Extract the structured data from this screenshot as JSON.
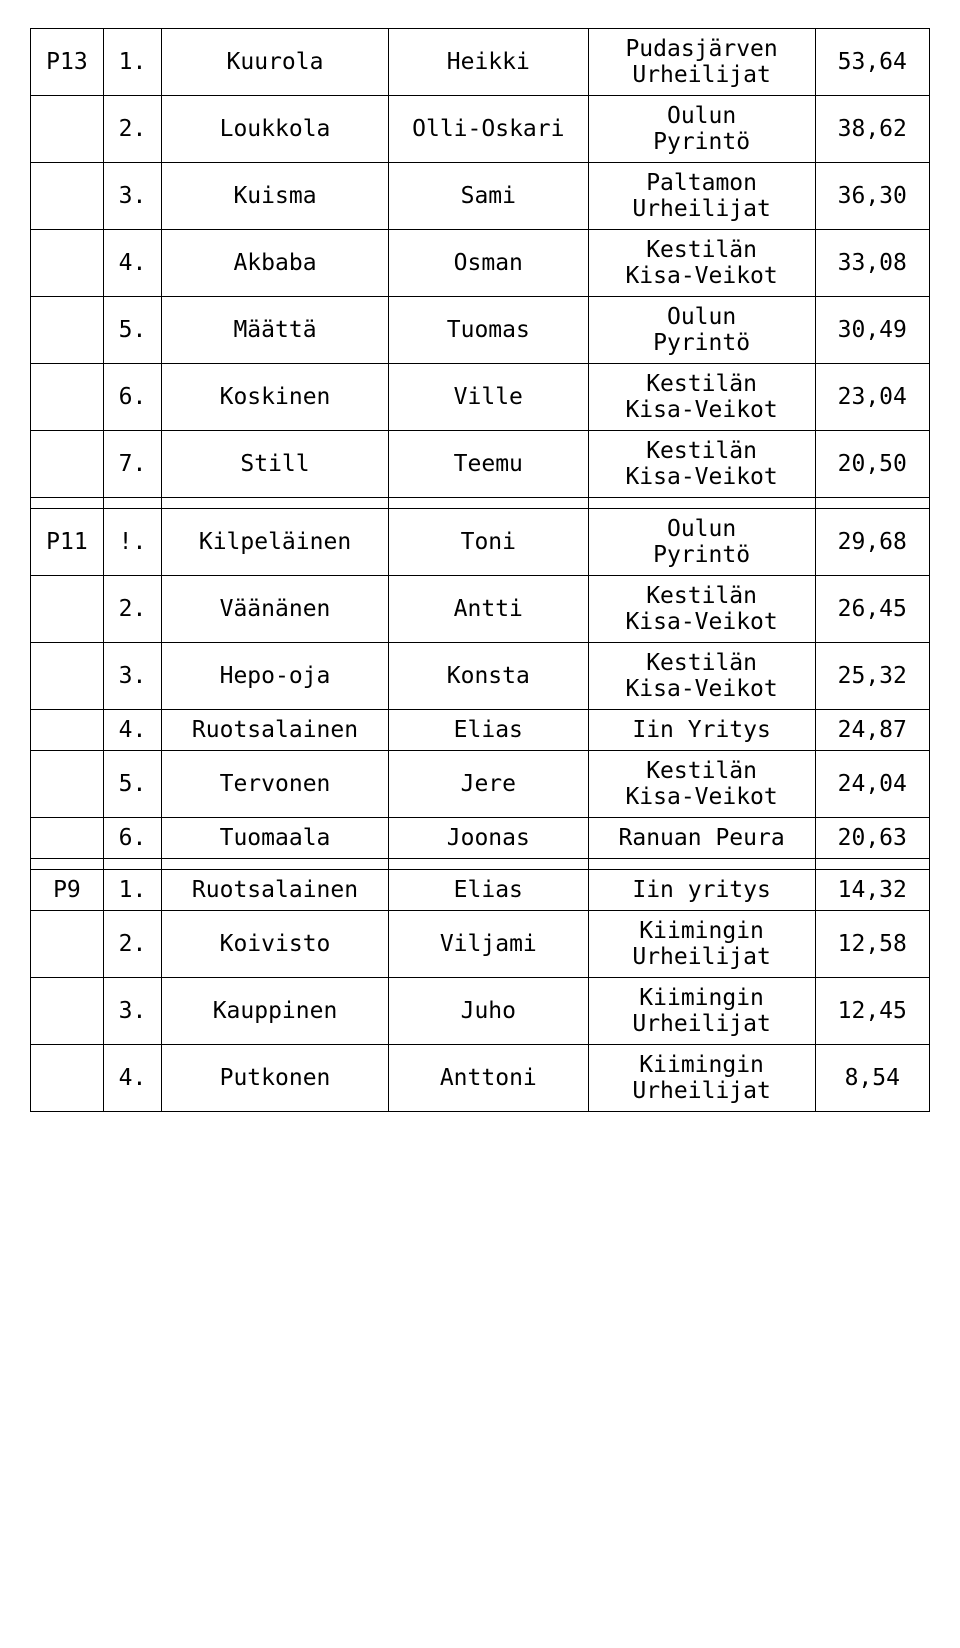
{
  "rows": [
    {
      "group": "P13",
      "rank": "1.",
      "lastname": "Kuurola",
      "firstname": "Heikki",
      "club": "Pudasjärven\nUrheilijat",
      "result": "53,64"
    },
    {
      "group": "",
      "rank": "2.",
      "lastname": "Loukkola",
      "firstname": "Olli-Oskari",
      "club": "Oulun\nPyrintö",
      "result": "38,62"
    },
    {
      "group": "",
      "rank": "3.",
      "lastname": "Kuisma",
      "firstname": "Sami",
      "club": "Paltamon\nUrheilijat",
      "result": "36,30"
    },
    {
      "group": "",
      "rank": "4.",
      "lastname": "Akbaba",
      "firstname": "Osman",
      "club": "Kestilän\nKisa-Veikot",
      "result": "33,08"
    },
    {
      "group": "",
      "rank": "5.",
      "lastname": "Määttä",
      "firstname": "Tuomas",
      "club": "Oulun\nPyrintö",
      "result": "30,49"
    },
    {
      "group": "",
      "rank": "6.",
      "lastname": "Koskinen",
      "firstname": "Ville",
      "club": "Kestilän\nKisa-Veikot",
      "result": "23,04"
    },
    {
      "group": "",
      "rank": "7.",
      "lastname": "Still",
      "firstname": "Teemu",
      "club": "Kestilän\nKisa-Veikot",
      "result": "20,50"
    },
    {
      "spacer": true
    },
    {
      "group": "P11",
      "rank": "!.",
      "lastname": "Kilpeläinen",
      "firstname": "Toni",
      "club": "Oulun\nPyrintö",
      "result": "29,68"
    },
    {
      "group": "",
      "rank": "2.",
      "lastname": "Väänänen",
      "firstname": "Antti",
      "club": "Kestilän\nKisa-Veikot",
      "result": "26,45"
    },
    {
      "group": "",
      "rank": "3.",
      "lastname": "Hepo-oja",
      "firstname": "Konsta",
      "club": "Kestilän\nKisa-Veikot",
      "result": "25,32"
    },
    {
      "group": "",
      "rank": "4.",
      "lastname": "Ruotsalainen",
      "firstname": "Elias",
      "club": "Iin Yritys",
      "result": "24,87"
    },
    {
      "group": "",
      "rank": "5.",
      "lastname": "Tervonen",
      "firstname": "Jere",
      "club": "Kestilän\nKisa-Veikot",
      "result": "24,04"
    },
    {
      "group": "",
      "rank": "6.",
      "lastname": "Tuomaala",
      "firstname": "Joonas",
      "club": "Ranuan Peura",
      "result": "20,63"
    },
    {
      "spacer": true
    },
    {
      "group": "P9",
      "rank": "1.",
      "lastname": "Ruotsalainen",
      "firstname": "Elias",
      "club": "Iin yritys",
      "result": "14,32"
    },
    {
      "group": "",
      "rank": "2.",
      "lastname": "Koivisto",
      "firstname": "Viljami",
      "club": "Kiimingin\nUrheilijat",
      "result": "12,58"
    },
    {
      "group": "",
      "rank": "3.",
      "lastname": "Kauppinen",
      "firstname": "Juho",
      "club": "Kiimingin\nUrheilijat",
      "result": "12,45"
    },
    {
      "group": "",
      "rank": "4.",
      "lastname": "Putkonen",
      "firstname": "Anttoni",
      "club": "Kiimingin\nUrheilijat",
      "result": "8,54"
    }
  ]
}
